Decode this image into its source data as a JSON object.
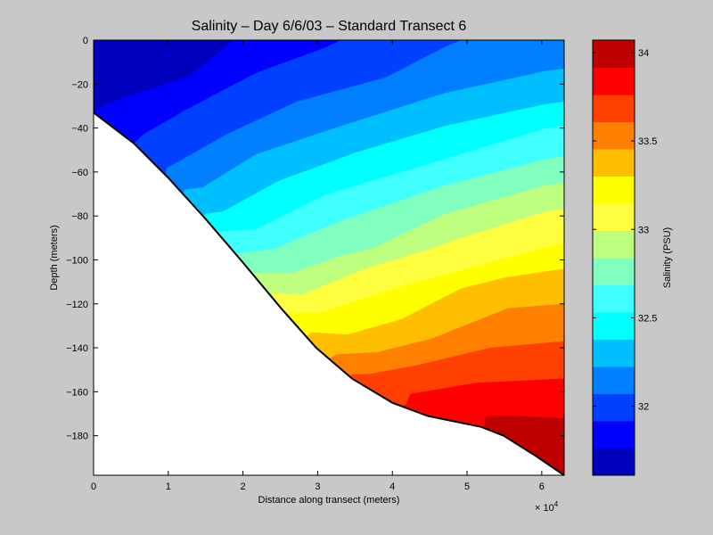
{
  "chart_data": {
    "type": "contourf",
    "title": "Salinity – Day 6/6/03 – Standard Transect 6",
    "xlabel": "Distance along transect (meters)",
    "ylabel": "Depth (meters)",
    "x_multiplier_label": "× 10",
    "x_multiplier_exp": "4",
    "xlim": [
      0,
      6.3
    ],
    "ylim": [
      -198,
      0
    ],
    "xticks": [
      0,
      1,
      2,
      3,
      4,
      5,
      6
    ],
    "xtick_labels": [
      "0",
      "1",
      "2",
      "3",
      "4",
      "5",
      "6"
    ],
    "yticks": [
      0,
      -20,
      -40,
      -60,
      -80,
      -100,
      -120,
      -140,
      -160,
      -180
    ],
    "ytick_labels": [
      "0",
      "−20",
      "−40",
      "−60",
      "−80",
      "−100",
      "−120",
      "−140",
      "−160",
      "−180"
    ],
    "colorbar": {
      "label": "Salinity (PSU)",
      "clim": [
        31.61,
        34.07
      ],
      "ticks": [
        32,
        32.5,
        33,
        33.5,
        34
      ],
      "tick_labels": [
        "32",
        "32.5",
        "33",
        "33.5",
        "34"
      ],
      "colors": [
        "#0000bf",
        "#0000ff",
        "#0040ff",
        "#0080ff",
        "#00bfff",
        "#00ffff",
        "#40ffff",
        "#80ffbf",
        "#bfff80",
        "#ffff40",
        "#ffff00",
        "#ffbf00",
        "#ff8000",
        "#ff4000",
        "#ff0000",
        "#bf0000"
      ]
    },
    "contour_lines": [
      [
        [
          0,
          -33
        ],
        [
          0.12,
          -30
        ],
        [
          0.42,
          -26
        ],
        [
          1.25,
          -17
        ],
        [
          1.81,
          -2
        ],
        [
          1.89,
          0
        ]
      ],
      [
        [
          0.54,
          -47
        ],
        [
          0.66,
          -43
        ],
        [
          1.22,
          -32
        ],
        [
          2.17,
          -15
        ],
        [
          3.13,
          -3
        ],
        [
          3.31,
          0
        ]
      ],
      [
        [
          0.98,
          -58
        ],
        [
          1.1,
          -56
        ],
        [
          1.77,
          -43
        ],
        [
          2.72,
          -28
        ],
        [
          3.91,
          -17
        ],
        [
          4.71,
          -3
        ],
        [
          4.92,
          0
        ]
      ],
      [
        [
          1.22,
          -68
        ],
        [
          1.46,
          -67
        ],
        [
          2.17,
          -52
        ],
        [
          3.32,
          -39
        ],
        [
          4.71,
          -24
        ],
        [
          6.06,
          -14
        ],
        [
          6.3,
          -13
        ]
      ],
      [
        [
          1.49,
          -79
        ],
        [
          1.73,
          -78
        ],
        [
          2.48,
          -64
        ],
        [
          3.52,
          -51
        ],
        [
          4.71,
          -39
        ],
        [
          6.06,
          -29
        ],
        [
          6.3,
          -28
        ]
      ],
      [
        [
          1.69,
          -87
        ],
        [
          2.17,
          -86
        ],
        [
          3.13,
          -70
        ],
        [
          4.32,
          -58
        ],
        [
          6.06,
          -40
        ],
        [
          6.3,
          -39
        ]
      ],
      [
        [
          1.93,
          -97
        ],
        [
          2.41,
          -95
        ],
        [
          3.32,
          -82
        ],
        [
          4.71,
          -66
        ],
        [
          6.06,
          -54
        ],
        [
          6.3,
          -53
        ]
      ],
      [
        [
          2.12,
          -106
        ],
        [
          2.65,
          -106
        ],
        [
          3.32,
          -98
        ],
        [
          3.72,
          -95
        ],
        [
          4.71,
          -79
        ],
        [
          6.06,
          -66
        ],
        [
          6.3,
          -65
        ]
      ],
      [
        [
          2.41,
          -115
        ],
        [
          2.77,
          -116
        ],
        [
          3.64,
          -104
        ],
        [
          4.51,
          -95
        ],
        [
          4.92,
          -90
        ],
        [
          6.06,
          -78
        ],
        [
          6.3,
          -77
        ]
      ],
      [
        [
          2.57,
          -124
        ],
        [
          3.04,
          -124
        ],
        [
          4.12,
          -112
        ],
        [
          5.43,
          -100
        ],
        [
          6.3,
          -92
        ]
      ],
      [
        [
          2.92,
          -133
        ],
        [
          3.4,
          -134
        ],
        [
          4.12,
          -127
        ],
        [
          4.92,
          -113
        ],
        [
          5.51,
          -108
        ],
        [
          6.3,
          -104
        ]
      ],
      [
        [
          3.26,
          -143
        ],
        [
          3.79,
          -142
        ],
        [
          4.51,
          -136
        ],
        [
          5.55,
          -122
        ],
        [
          6.3,
          -120
        ]
      ],
      [
        [
          3.48,
          -152
        ],
        [
          3.68,
          -152
        ],
        [
          4.32,
          -148
        ],
        [
          5.31,
          -140
        ],
        [
          6.3,
          -137
        ]
      ],
      [
        [
          4.18,
          -166
        ],
        [
          4.24,
          -161
        ],
        [
          5.11,
          -156
        ],
        [
          6.3,
          -154
        ]
      ],
      [
        [
          5.23,
          -176
        ],
        [
          5.25,
          -171
        ],
        [
          5.7,
          -171
        ],
        [
          6.3,
          -172
        ]
      ]
    ],
    "bathymetry": [
      [
        0,
        -33
      ],
      [
        0.54,
        -47
      ],
      [
        1.01,
        -63
      ],
      [
        1.49,
        -81
      ],
      [
        1.97,
        -100
      ],
      [
        2.51,
        -122
      ],
      [
        2.98,
        -140
      ],
      [
        3.46,
        -154
      ],
      [
        4.0,
        -165
      ],
      [
        4.47,
        -171
      ],
      [
        5.19,
        -176
      ],
      [
        5.49,
        -180
      ],
      [
        5.91,
        -189
      ],
      [
        6.3,
        -198
      ]
    ]
  }
}
